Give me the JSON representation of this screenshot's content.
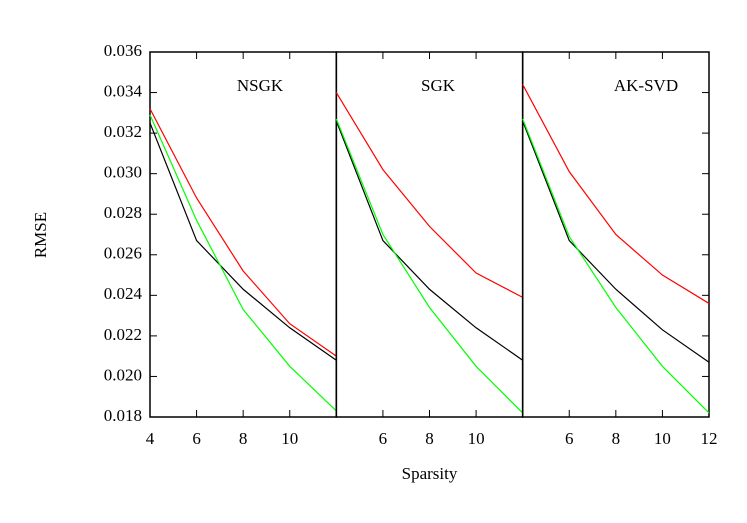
{
  "chart_data": [
    {
      "type": "line",
      "title": "NSGK",
      "y_label": "RMSE",
      "x": [
        4,
        6,
        8,
        10,
        12
      ],
      "xlim": [
        4,
        12
      ],
      "xticks": [
        4,
        6,
        8,
        10
      ],
      "ylim": [
        0.018,
        0.036
      ],
      "yticks": [
        0.018,
        {
          "value": 0.02,
          "label": "0.020"
        },
        0.022,
        0.024,
        0.026,
        0.028,
        {
          "value": 0.03,
          "label": "0.030"
        },
        0.032,
        0.034,
        0.036
      ],
      "series": [
        {
          "color": "#ff0000",
          "values": [
            0.0332,
            0.0288,
            0.0252,
            0.0226,
            0.021
          ]
        },
        {
          "color": "#000000",
          "values": [
            0.0325,
            0.0267,
            0.0243,
            0.0224,
            0.0208
          ]
        },
        {
          "color": "#00ff00",
          "values": [
            0.0329,
            0.0277,
            0.0233,
            0.0205,
            0.0183
          ]
        }
      ]
    },
    {
      "type": "line",
      "title": "SGK",
      "x_label": "Sparsity",
      "x": [
        4,
        6,
        8,
        10,
        12
      ],
      "xlim": [
        4,
        12
      ],
      "xticks": [
        6,
        8,
        10
      ],
      "ylim": [
        0.018,
        0.036
      ],
      "series": [
        {
          "color": "#ff0000",
          "values": [
            0.034,
            0.0302,
            0.0274,
            0.0251,
            0.0239
          ]
        },
        {
          "color": "#000000",
          "values": [
            0.0326,
            0.0267,
            0.0243,
            0.0224,
            0.0208
          ]
        },
        {
          "color": "#00ff00",
          "values": [
            0.0327,
            0.027,
            0.0234,
            0.0205,
            0.0182
          ]
        }
      ]
    },
    {
      "type": "line",
      "title": "AK-SVD",
      "x": [
        4,
        6,
        8,
        10,
        12
      ],
      "xlim": [
        4,
        12
      ],
      "xticks": [
        6,
        8,
        10,
        12
      ],
      "ylim": [
        0.018,
        0.036
      ],
      "series": [
        {
          "color": "#ff0000",
          "values": [
            0.0344,
            0.0301,
            0.027,
            0.025,
            0.0236
          ]
        },
        {
          "color": "#000000",
          "values": [
            0.0326,
            0.0267,
            0.0243,
            0.0223,
            0.0207
          ]
        },
        {
          "color": "#00ff00",
          "values": [
            0.0327,
            0.0269,
            0.0234,
            0.0205,
            0.0182
          ]
        }
      ]
    }
  ]
}
